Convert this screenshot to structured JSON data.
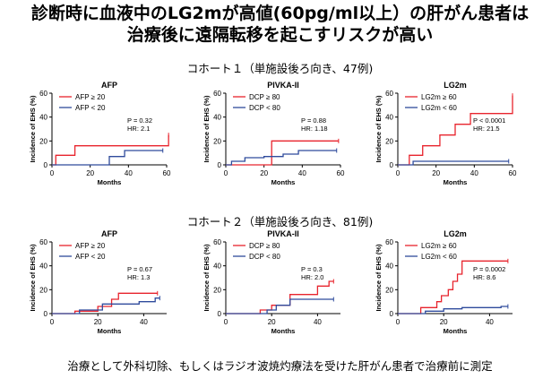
{
  "header": {
    "title_line1": "診断時に血液中のLG2mが高値(60pg/ml以上）の肝がん患者は",
    "title_line2": "治療後に遠隔転移を起こすリスクが高い"
  },
  "cohort1_label": "コホート１（単施設後ろ向き、47例)",
  "cohort2_label": "コホート２（単施設後ろ向き、81例)",
  "footnote": "治療として外科切除、もしくはラジオ波焼灼療法を受けた肝がん患者で治療前に測定",
  "colors": {
    "high": "#e8242d",
    "low": "#2f4b9c",
    "axis": "#000000"
  },
  "chart_data": [
    {
      "type": "line",
      "step": true,
      "title": "AFP",
      "xlabel": "Months",
      "ylabel": "Incidence of EHS (%)",
      "xlim": [
        0,
        60
      ],
      "ylim": [
        0,
        60
      ],
      "xticks": [
        "0",
        "20",
        "40",
        "60"
      ],
      "yticks": [
        "0",
        "20",
        "40",
        "60"
      ],
      "series": [
        {
          "name": "AFP ≥ 20",
          "color": "#e8242d",
          "x": [
            0,
            2,
            12,
            60,
            61
          ],
          "y": [
            0,
            8,
            16,
            16,
            25
          ]
        },
        {
          "name": "AFP < 20",
          "color": "#2f4b9c",
          "x": [
            0,
            30,
            38,
            58
          ],
          "y": [
            0,
            7,
            12,
            12
          ]
        }
      ],
      "stats": {
        "p": "P = 0.32",
        "hr": "HR: 2.1"
      }
    },
    {
      "type": "line",
      "step": true,
      "title": "PIVKA-II",
      "xlabel": "Months",
      "ylabel": "Incidence of EHS (%)",
      "xlim": [
        0,
        60
      ],
      "ylim": [
        0,
        60
      ],
      "xticks": [
        "0",
        "20",
        "40",
        "60"
      ],
      "yticks": [
        "0",
        "20",
        "40",
        "60"
      ],
      "series": [
        {
          "name": "DCP ≥ 80",
          "color": "#e8242d",
          "x": [
            0,
            24,
            59
          ],
          "y": [
            0,
            20,
            20
          ]
        },
        {
          "name": "DCP < 80",
          "color": "#2f4b9c",
          "x": [
            0,
            3,
            10,
            20,
            30,
            38,
            58
          ],
          "y": [
            0,
            3,
            6,
            7,
            9,
            12,
            12
          ]
        }
      ],
      "stats": {
        "p": "P = 0.88",
        "hr": "HR: 1.18"
      }
    },
    {
      "type": "line",
      "step": true,
      "title": "LG2m",
      "xlabel": "Months",
      "ylabel": "Incidence of EHS (%)",
      "xlim": [
        0,
        60
      ],
      "ylim": [
        0,
        60
      ],
      "xticks": [
        "0",
        "20",
        "40",
        "60"
      ],
      "yticks": [
        "0",
        "20",
        "40",
        "60"
      ],
      "series": [
        {
          "name": "LG2m ≥ 60",
          "color": "#e8242d",
          "x": [
            0,
            6,
            13,
            22,
            30,
            38,
            59,
            60
          ],
          "y": [
            0,
            8,
            16,
            25,
            34,
            43,
            43,
            58
          ]
        },
        {
          "name": "LG2m < 60",
          "color": "#2f4b9c",
          "x": [
            0,
            8,
            58
          ],
          "y": [
            0,
            3,
            3
          ]
        }
      ],
      "stats": {
        "p": "P < 0.0001",
        "hr": "HR: 21.5"
      }
    },
    {
      "type": "line",
      "step": true,
      "title": "AFP",
      "xlabel": "Months",
      "ylabel": "Incidence of EHS (%)",
      "xlim": [
        0,
        50
      ],
      "ylim": [
        0,
        60
      ],
      "xticks": [
        "0",
        "20",
        "40"
      ],
      "yticks": [
        "0",
        "20",
        "40",
        "60"
      ],
      "series": [
        {
          "name": "AFP ≥ 20",
          "color": "#e8242d",
          "x": [
            0,
            10,
            20,
            26,
            29,
            46
          ],
          "y": [
            0,
            2,
            6,
            12,
            17,
            17
          ]
        },
        {
          "name": "AFP < 20",
          "color": "#2f4b9c",
          "x": [
            0,
            12,
            22,
            38,
            45,
            47
          ],
          "y": [
            0,
            3,
            8,
            10,
            13,
            13
          ]
        }
      ],
      "stats": {
        "p": "P = 0.67",
        "hr": "HR: 1.3"
      }
    },
    {
      "type": "line",
      "step": true,
      "title": "PIVKA-II",
      "xlabel": "Months",
      "ylabel": "Incidence of EHS (%)",
      "xlim": [
        0,
        50
      ],
      "ylim": [
        0,
        60
      ],
      "xticks": [
        "0",
        "20",
        "40"
      ],
      "yticks": [
        "0",
        "20",
        "40",
        "60"
      ],
      "series": [
        {
          "name": "DCP ≥ 80",
          "color": "#e8242d",
          "x": [
            0,
            15,
            20,
            28,
            40,
            45,
            47
          ],
          "y": [
            0,
            3,
            7,
            16,
            23,
            27,
            27
          ]
        },
        {
          "name": "DCP < 80",
          "color": "#2f4b9c",
          "x": [
            0,
            18,
            22,
            28,
            47
          ],
          "y": [
            0,
            3,
            7,
            12,
            12
          ]
        }
      ],
      "stats": {
        "p": "P = 0.3",
        "hr": "HR: 2.0"
      }
    },
    {
      "type": "line",
      "step": true,
      "title": "LG2m",
      "xlabel": "Months",
      "ylabel": "Incidence of EHS (%)",
      "xlim": [
        0,
        50
      ],
      "ylim": [
        0,
        60
      ],
      "xticks": [
        "0",
        "20",
        "40"
      ],
      "yticks": [
        "0",
        "20",
        "40",
        "60"
      ],
      "series": [
        {
          "name": "LG2m ≥ 60",
          "color": "#e8242d",
          "x": [
            0,
            10,
            17,
            19,
            22,
            24,
            26,
            28,
            48
          ],
          "y": [
            0,
            5,
            10,
            15,
            20,
            27,
            33,
            44,
            44
          ]
        },
        {
          "name": "LG2m < 60",
          "color": "#2f4b9c",
          "x": [
            0,
            12,
            20,
            28,
            45,
            48
          ],
          "y": [
            0,
            2,
            4,
            5,
            6,
            6
          ]
        }
      ],
      "stats": {
        "p": "P = 0.0002",
        "hr": "HR: 8.6"
      }
    }
  ]
}
